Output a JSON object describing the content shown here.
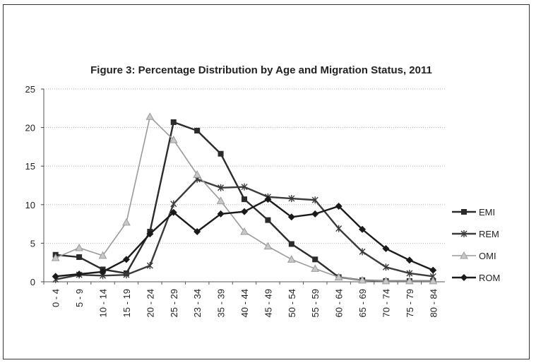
{
  "chart_data": {
    "type": "line",
    "title": "Figure 3: Percentage Distribution  by Age and Migration Status, 2011",
    "xlabel": "",
    "ylabel": "",
    "ylim": [
      0,
      25
    ],
    "yticks": [
      0,
      5,
      10,
      15,
      20,
      25
    ],
    "grid": "horizontal",
    "legend_position": "right",
    "categories": [
      "0 - 4",
      "5 - 9",
      "10 - 14",
      "15 - 19",
      "20 - 24",
      "25 - 29",
      "23 - 34",
      "35 - 39",
      "40 - 44",
      "45 - 49",
      "50 - 54",
      "55 - 59",
      "60 - 64",
      "65 - 69",
      "70 - 74",
      "75 - 79",
      "80 - 84"
    ],
    "series": [
      {
        "name": "EMI",
        "marker": "square",
        "color": "#2b2b2b",
        "values": [
          3.5,
          3.2,
          1.6,
          1.1,
          6.5,
          20.7,
          19.6,
          16.6,
          10.7,
          8.0,
          4.9,
          2.9,
          0.6,
          0.2,
          0.1,
          0.1,
          0.1
        ]
      },
      {
        "name": "REM",
        "marker": "star",
        "color": "#3a3a3a",
        "values": [
          0.3,
          0.9,
          0.8,
          0.9,
          2.1,
          10.1,
          13.3,
          12.2,
          12.3,
          11.0,
          10.8,
          10.6,
          6.9,
          3.9,
          1.9,
          1.1,
          0.7
        ]
      },
      {
        "name": "OMI",
        "marker": "triangle",
        "color": "#9a9a9a",
        "values": [
          3.1,
          4.4,
          3.4,
          7.7,
          21.4,
          18.4,
          13.9,
          10.5,
          6.5,
          4.6,
          2.9,
          1.7,
          0.6,
          0.2,
          0.1,
          0.1,
          0.1
        ]
      },
      {
        "name": "ROM",
        "marker": "diamond",
        "color": "#1a1a1a",
        "values": [
          0.7,
          1.0,
          1.3,
          2.9,
          6.2,
          9.0,
          6.5,
          8.8,
          9.1,
          10.7,
          8.4,
          8.8,
          9.8,
          6.8,
          4.3,
          2.8,
          1.5
        ]
      }
    ]
  }
}
